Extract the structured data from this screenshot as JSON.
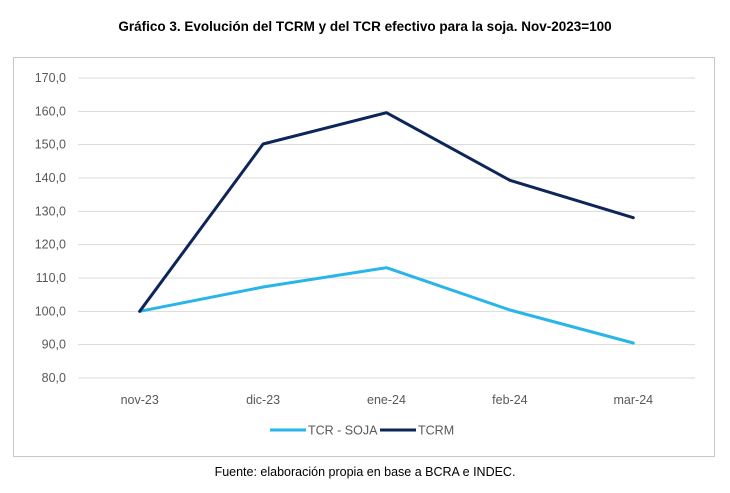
{
  "title": "Gráfico 3. Evolución del TCRM y del TCR efectivo para la soja. Nov-2023=100",
  "source": "Fuente: elaboración propia en base a BCRA e INDEC.",
  "chart_data": {
    "type": "line",
    "categories": [
      "nov-23",
      "dic-23",
      "ene-24",
      "feb-24",
      "mar-24"
    ],
    "ylim": [
      80,
      170
    ],
    "yticks": [
      "80,0",
      "90,0",
      "100,0",
      "110,0",
      "120,0",
      "130,0",
      "140,0",
      "150,0",
      "160,0",
      "170,0"
    ],
    "grid": true,
    "legend_position": "bottom",
    "series": [
      {
        "name": "TCR - SOJA",
        "color": "#29b5e8",
        "values": [
          100.0,
          107.3,
          113.1,
          100.4,
          90.5
        ]
      },
      {
        "name": "TCRM",
        "color": "#0d2559",
        "values": [
          100.0,
          150.2,
          159.6,
          139.3,
          128.1
        ]
      }
    ]
  }
}
